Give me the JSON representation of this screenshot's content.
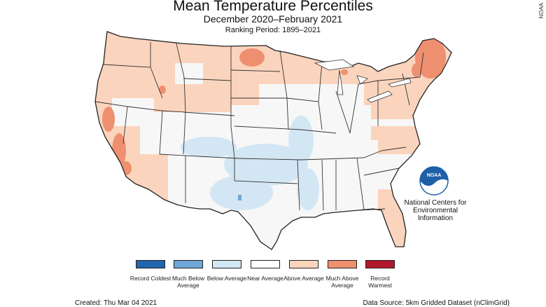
{
  "header": {
    "title": "Mean Temperature Percentiles",
    "subtitle": "December 2020–February 2021",
    "ranking": "Ranking Period: 1895–2021"
  },
  "credit": "NOAA",
  "org": {
    "logo_text": "NOAA",
    "name_lines": [
      "National Centers for",
      "Environmental",
      "Information"
    ]
  },
  "legend": [
    {
      "label": "Record Coldest",
      "color": "#2166ac"
    },
    {
      "label": "Much Below Average",
      "color": "#6ea6d5"
    },
    {
      "label": "Below Average",
      "color": "#d3e6f4"
    },
    {
      "label": "Near Average",
      "color": "#ffffff"
    },
    {
      "label": "Above Average",
      "color": "#fbd4bd"
    },
    {
      "label": "Much Above Average",
      "color": "#ee9070"
    },
    {
      "label": "Record Warmest",
      "color": "#b2182b"
    }
  ],
  "footer": {
    "created": "Created: Thu Mar 04 2021",
    "source": "Data Source: 5km Gridded Dataset (nClimGrid)"
  }
}
